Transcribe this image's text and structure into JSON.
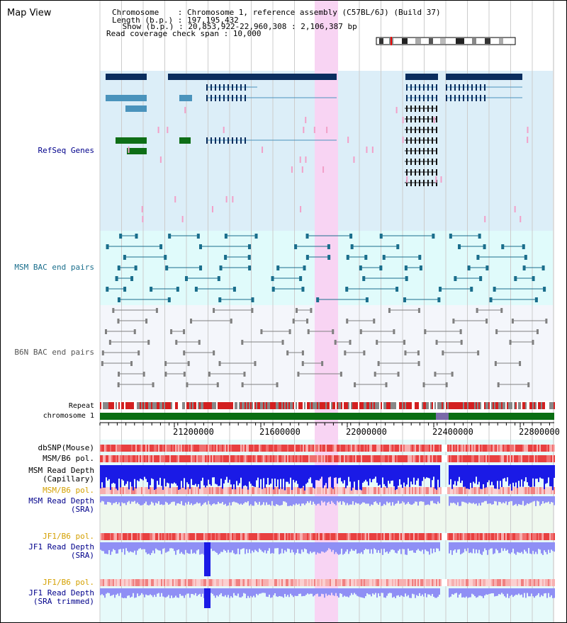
{
  "title": "Map View",
  "info": {
    "chromosome": "Chromosome    : Chromosome 1, reference assembly (C57BL/6J) (Build 37)",
    "length": "Length (b.p.) : 197,195,432",
    "show": " Show (b.p.) : 20,853,922-22,960,308 : 2,106,387 bp",
    "coverage": "Read coverage check span : 10,000"
  },
  "tracks": {
    "refseq": "RefSeq Genes",
    "msm_bac": "MSM BAC end pairs",
    "b6n_bac": "B6N BAC end pairs",
    "repeat": "Repeat",
    "chromosome": "chromosome 1",
    "dbsnp": "dbSNP(Mouse)",
    "msm_b6_pol": "MSM/B6 pol.",
    "msm_depth_cap_1": "MSM Read Depth",
    "msm_depth_cap_2": "(Capillary)",
    "msm_b6_pol_2": "MSM/B6 pol.",
    "msm_depth_sra_1": "MSM Read Depth",
    "msm_depth_sra_2": "(SRA)",
    "jf1_b6_pol": "JF1/B6 pol.",
    "jf1_depth_sra_1": "JF1 Read Depth",
    "jf1_depth_sra_2": "(SRA)",
    "jf1_b6_pol_2": "JF1/B6 pol.",
    "jf1_depth_trim_1": "JF1 Read Depth",
    "jf1_depth_trim_2": "(SRA trimmed)"
  },
  "axis": {
    "ticks": [
      "21200000",
      "21600000",
      "22000000",
      "22400000",
      "22800000"
    ]
  },
  "colors": {
    "refseq_bg": "#dceef8",
    "msm_bac_bg": "#e0fbfb",
    "b6n_bac_bg": "#f4f6fb",
    "highlight": "#f8d4f3",
    "gene_dark": "#0a2d5e",
    "gene_blue": "#4a93bc",
    "gene_green": "#0e6e16",
    "msm_bac": "#1a6e8c",
    "b6n_bac": "#808080",
    "depth_blue": "#1a1ae6",
    "depth_light": "#8f8ff5",
    "pol_red": "#e84040",
    "label_blue": "#00008b",
    "label_orange": "#d4a000"
  }
}
